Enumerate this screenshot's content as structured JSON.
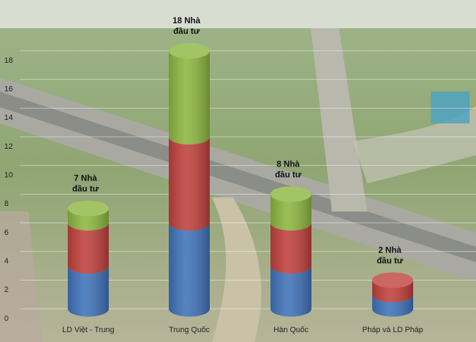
{
  "chart_data": {
    "type": "cylinder-stacked-bar",
    "categories": [
      "LD Việt - Trung",
      "Trung Quốc",
      "Hàn Quốc",
      "Pháp và LD Pháp"
    ],
    "series": [
      {
        "color": "#3f72b9",
        "values": [
          3,
          6,
          3,
          1
        ]
      },
      {
        "color": "#c0403c",
        "values": [
          3,
          6,
          3,
          1
        ]
      },
      {
        "color": "#8db63f",
        "values": [
          1,
          6,
          2,
          0
        ]
      }
    ],
    "total_labels": [
      "7 Nhà đầu tư",
      "18 Nhà đầu tư",
      "8 Nhà đầu tư",
      "2 Nhà đầu tư"
    ],
    "ylim": [
      0,
      18
    ],
    "yticks": [
      0,
      2,
      4,
      6,
      8,
      10,
      12,
      14,
      16,
      18
    ],
    "grid": true
  }
}
